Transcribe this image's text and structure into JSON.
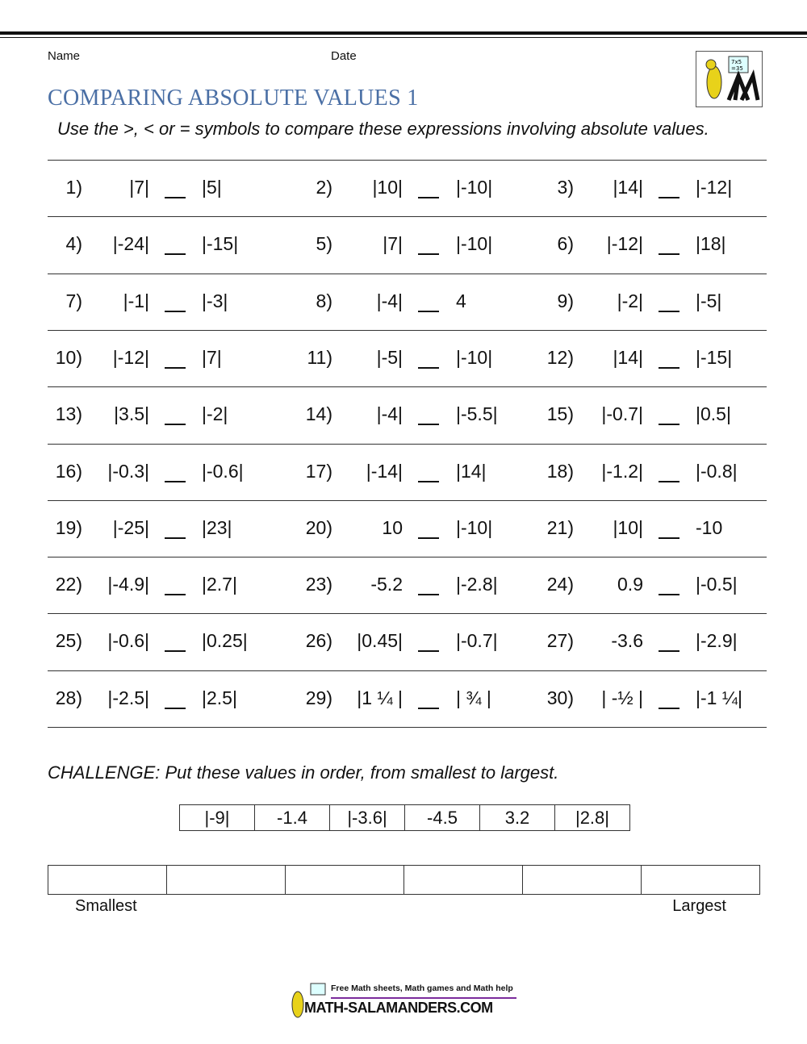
{
  "header": {
    "name_label": "Name",
    "date_label": "Date",
    "title": "COMPARING ABSOLUTE VALUES 1",
    "instructions": "Use the >, < or = symbols to compare these expressions involving absolute values."
  },
  "problems": [
    {
      "num": "1)",
      "left": "|7|",
      "right": "|5|"
    },
    {
      "num": "2)",
      "left": "|10|",
      "right": "|-10|"
    },
    {
      "num": "3)",
      "left": "|14|",
      "right": "|-12|"
    },
    {
      "num": "4)",
      "left": "|-24|",
      "right": "|-15|"
    },
    {
      "num": "5)",
      "left": "|7|",
      "right": "|-10|"
    },
    {
      "num": "6)",
      "left": "|-12|",
      "right": "|18|"
    },
    {
      "num": "7)",
      "left": "|-1|",
      "right": "|-3|"
    },
    {
      "num": "8)",
      "left": "|-4|",
      "right": "4"
    },
    {
      "num": "9)",
      "left": "|-2|",
      "right": "|-5|"
    },
    {
      "num": "10)",
      "left": "|-12|",
      "right": "|7|"
    },
    {
      "num": "11)",
      "left": "|-5|",
      "right": "|-10|"
    },
    {
      "num": "12)",
      "left": "|14|",
      "right": "|-15|"
    },
    {
      "num": "13)",
      "left": "|3.5|",
      "right": "|-2|"
    },
    {
      "num": "14)",
      "left": "|-4|",
      "right": "|-5.5|"
    },
    {
      "num": "15)",
      "left": "|-0.7|",
      "right": "|0.5|"
    },
    {
      "num": "16)",
      "left": "|-0.3|",
      "right": "|-0.6|"
    },
    {
      "num": "17)",
      "left": "|-14|",
      "right": "|14|"
    },
    {
      "num": "18)",
      "left": "|-1.2|",
      "right": "|-0.8|"
    },
    {
      "num": "19)",
      "left": "|-25|",
      "right": "|23|"
    },
    {
      "num": "20)",
      "left": "10",
      "right": "|-10|"
    },
    {
      "num": "21)",
      "left": "|10|",
      "right": "-10"
    },
    {
      "num": "22)",
      "left": "|-4.9|",
      "right": "|2.7|"
    },
    {
      "num": "23)",
      "left": "-5.2",
      "right": "|-2.8|"
    },
    {
      "num": "24)",
      "left": "0.9",
      "right": "|-0.5|"
    },
    {
      "num": "25)",
      "left": "|-0.6|",
      "right": "|0.25|"
    },
    {
      "num": "26)",
      "left": "|0.45|",
      "right": "|-0.7|"
    },
    {
      "num": "27)",
      "left": "-3.6",
      "right": "|-2.9|"
    },
    {
      "num": "28)",
      "left": "|-2.5|",
      "right": "|2.5|"
    },
    {
      "num": "29)",
      "left": "|1 ¼ |",
      "right": "| ¾ |"
    },
    {
      "num": "30)",
      "left": "| -½ |",
      "right": "|-1 ¼|"
    }
  ],
  "challenge": {
    "prompt": "CHALLENGE: Put these values in order, from smallest to largest.",
    "values": [
      "|-9|",
      "-1.4",
      "|-3.6|",
      "-4.5",
      "3.2",
      "|2.8|"
    ],
    "smallest_label": "Smallest",
    "largest_label": "Largest"
  },
  "footer": {
    "logo_tagline": "Free Math sheets, Math games and Math help",
    "logo_text": "MATH-SALAMANDERS.COM"
  },
  "colors": {
    "title": "#4a6fa5",
    "footer_rule": "#7b2c9c"
  }
}
